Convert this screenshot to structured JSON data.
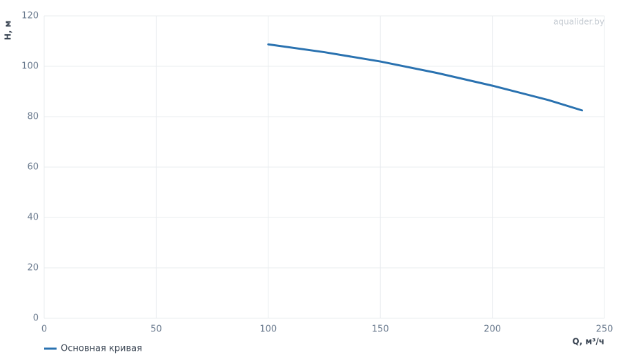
{
  "chart_data": {
    "type": "line",
    "watermark": "aqualider.by",
    "x_label": "Q, м³/ч",
    "y_label": "H, м",
    "x": [
      100,
      125,
      150,
      175,
      200,
      225,
      240
    ],
    "series": [
      {
        "name": "Основная кривая",
        "color": "#2a72b0",
        "values": [
          108.7,
          105.6,
          101.9,
          97.4,
          92.3,
          86.6,
          82.5
        ]
      }
    ],
    "xlim": [
      0,
      250
    ],
    "xticks": [
      0,
      50,
      100,
      150,
      200,
      250
    ],
    "ylim": [
      0,
      120
    ],
    "yticks": [
      0,
      20,
      40,
      60,
      80,
      100,
      120
    ],
    "grid": true,
    "legend": "bottom-left"
  }
}
